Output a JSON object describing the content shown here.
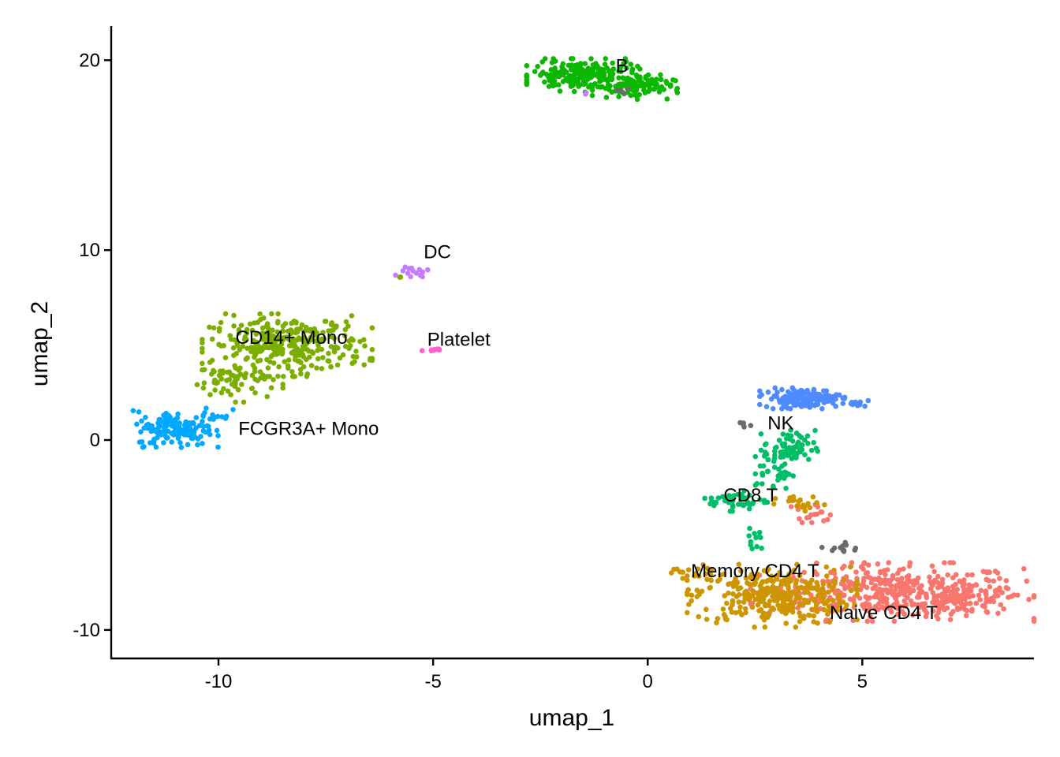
{
  "chart_data": {
    "type": "scatter",
    "xlabel": "umap_1",
    "ylabel": "umap_2",
    "xlim": [
      -12.5,
      9.0
    ],
    "ylim": [
      -11.5,
      21.8
    ],
    "x_ticks": [
      -10,
      -5,
      0,
      5
    ],
    "x_tick_labels": [
      "-10",
      "-5",
      "0",
      "5"
    ],
    "y_ticks": [
      -10,
      0,
      10,
      20
    ],
    "y_tick_labels": [
      "-10",
      "0",
      "10",
      "20"
    ],
    "grid": false,
    "legend": "none",
    "clusters": [
      {
        "name": "Naive CD4 T",
        "color": "#F8766D",
        "label_at": [
          5.5,
          -9.1
        ],
        "blobs": [
          {
            "cx": 5.7,
            "cy": -8.0,
            "sx": 1.5,
            "sy": 0.7,
            "n": 420
          },
          {
            "cx": 7.3,
            "cy": -8.4,
            "sx": 0.6,
            "sy": 0.35,
            "n": 90
          },
          {
            "cx": 3.8,
            "cy": -3.8,
            "sx": 0.35,
            "sy": 0.25,
            "n": 18
          }
        ]
      },
      {
        "name": "Memory CD4 T",
        "color": "#CD9600",
        "label_at": [
          2.5,
          -6.9
        ],
        "blobs": [
          {
            "cx": 2.9,
            "cy": -8.2,
            "sx": 0.9,
            "sy": 0.75,
            "n": 320
          },
          {
            "cx": 1.0,
            "cy": -7.0,
            "sx": 0.35,
            "sy": 0.2,
            "n": 14
          },
          {
            "cx": 3.6,
            "cy": -3.4,
            "sx": 0.3,
            "sy": 0.22,
            "n": 20
          }
        ]
      },
      {
        "name": "CD14+ Mono",
        "color": "#7CAE00",
        "label_at": [
          -8.3,
          5.4
        ],
        "blobs": [
          {
            "cx": -8.4,
            "cy": 5.0,
            "sx": 0.9,
            "sy": 0.75,
            "n": 310
          },
          {
            "cx": -9.6,
            "cy": 3.1,
            "sx": 0.5,
            "sy": 0.5,
            "n": 60
          },
          {
            "cx": -5.75,
            "cy": 8.6,
            "sx": 0.05,
            "sy": 0.05,
            "n": 2
          }
        ]
      },
      {
        "name": "B",
        "color": "#0CB702",
        "label_at": [
          -0.6,
          19.7
        ],
        "blobs": [
          {
            "cx": -1.5,
            "cy": 19.2,
            "sx": 0.6,
            "sy": 0.4,
            "n": 200
          },
          {
            "cx": -0.3,
            "cy": 18.6,
            "sx": 0.45,
            "sy": 0.3,
            "n": 90
          }
        ]
      },
      {
        "name": "CD8 T",
        "color": "#00BE67",
        "label_at": [
          2.4,
          -2.9
        ],
        "blobs": [
          {
            "cx": 3.3,
            "cy": -0.4,
            "sx": 0.3,
            "sy": 0.45,
            "n": 70
          },
          {
            "cx": 2.95,
            "cy": -1.7,
            "sx": 0.2,
            "sy": 0.45,
            "n": 35
          },
          {
            "cx": 2.1,
            "cy": -3.2,
            "sx": 0.35,
            "sy": 0.25,
            "n": 45
          },
          {
            "cx": 2.5,
            "cy": -5.2,
            "sx": 0.12,
            "sy": 0.5,
            "n": 12
          }
        ]
      },
      {
        "name": "FCGR3A+ Mono",
        "color": "#00A9FF",
        "label_at": [
          -7.9,
          0.6
        ],
        "blobs": [
          {
            "cx": -11.0,
            "cy": 0.6,
            "sx": 0.45,
            "sy": 0.45,
            "n": 150
          },
          {
            "cx": -10.1,
            "cy": 1.3,
            "sx": 0.2,
            "sy": 0.3,
            "n": 15
          }
        ]
      },
      {
        "name": "NK",
        "color": "#4F8BFF",
        "label_at": [
          3.1,
          0.9
        ],
        "blobs": [
          {
            "cx": 3.6,
            "cy": 2.2,
            "sx": 0.45,
            "sy": 0.25,
            "n": 140
          },
          {
            "cx": 4.9,
            "cy": 1.9,
            "sx": 0.15,
            "sy": 0.08,
            "n": 12
          }
        ]
      },
      {
        "name": "DC",
        "color": "#C77CFF",
        "label_at": [
          -4.9,
          9.9
        ],
        "blobs": [
          {
            "cx": -5.5,
            "cy": 8.9,
            "sx": 0.2,
            "sy": 0.2,
            "n": 14
          },
          {
            "cx": -1.45,
            "cy": 18.2,
            "sx": 0.05,
            "sy": 0.05,
            "n": 2
          }
        ]
      },
      {
        "name": "Platelet",
        "color": "#FF61CC",
        "label_at": [
          -4.4,
          5.3
        ],
        "blobs": [
          {
            "cx": -4.9,
            "cy": 4.75,
            "sx": 0.07,
            "sy": 0.03,
            "n": 8
          },
          {
            "cx": -5.25,
            "cy": 4.7,
            "sx": 0.01,
            "sy": 0.01,
            "n": 1
          }
        ]
      },
      {
        "name": "",
        "color": "#6B6B6B",
        "blobs": [
          {
            "cx": 4.5,
            "cy": -5.7,
            "sx": 0.2,
            "sy": 0.15,
            "n": 12
          },
          {
            "cx": 2.25,
            "cy": 0.8,
            "sx": 0.08,
            "sy": 0.1,
            "n": 5
          },
          {
            "cx": -0.7,
            "cy": 18.6,
            "sx": 0.3,
            "sy": 0.2,
            "n": 4
          }
        ]
      }
    ]
  }
}
